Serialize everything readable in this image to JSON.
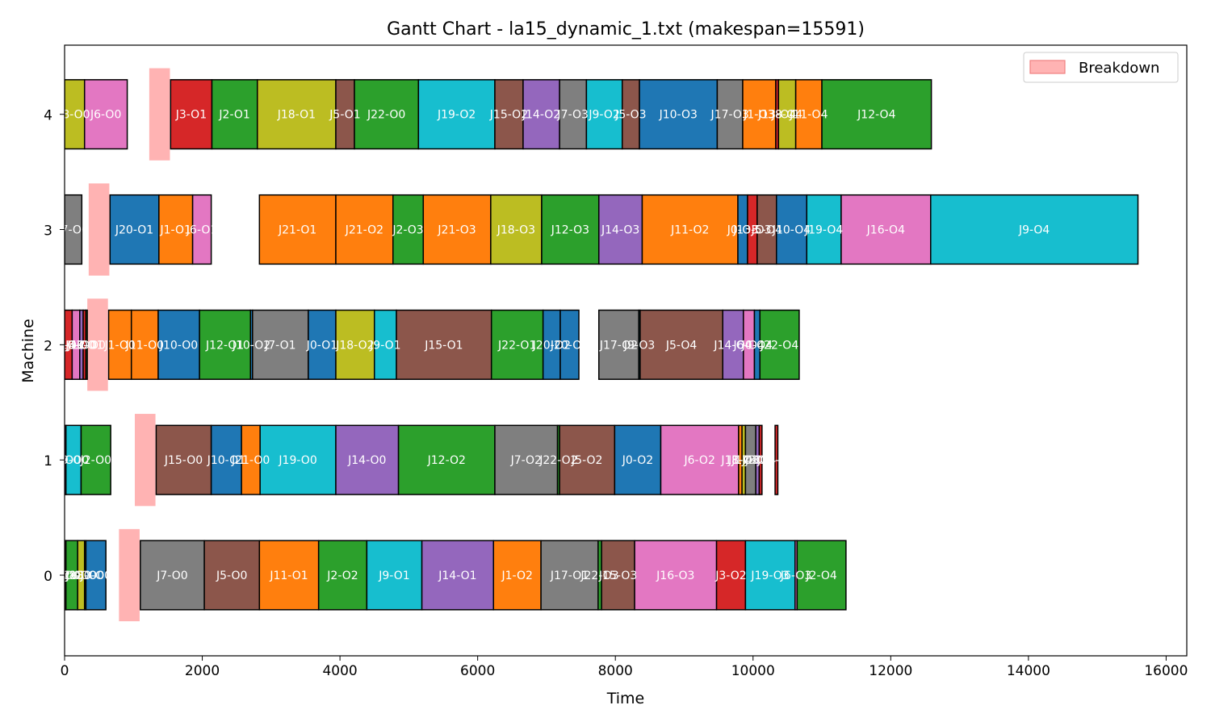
{
  "chart_data": {
    "type": "gantt",
    "title": "Gantt Chart - la15_dynamic_1.txt (makespan=15591)",
    "xlabel": "Time",
    "ylabel": "Machine",
    "xlim": [
      0,
      16300
    ],
    "ylim": [
      -0.7,
      4.6
    ],
    "x_ticks": [
      0,
      2000,
      4000,
      6000,
      8000,
      10000,
      12000,
      14000,
      16000
    ],
    "x_tick_labels": [
      "0",
      "2000",
      "4000",
      "6000",
      "8000",
      "10000",
      "12000",
      "14000",
      "16000"
    ],
    "y_ticks": [
      0,
      1,
      2,
      3,
      4
    ],
    "y_tick_labels": [
      "0",
      "1",
      "2",
      "3",
      "4"
    ],
    "legend": {
      "label": "Breakdown",
      "color": "#ffb3b3",
      "edge": "#f08080",
      "position": "top-right"
    },
    "colors": {
      "J0": "#1f77b4",
      "J1": "#ff7f0e",
      "J2": "#2ca02c",
      "J3": "#d62728",
      "J4": "#9467bd",
      "J5": "#8c564b",
      "J6": "#e377c2",
      "J7": "#7f7f7f",
      "J8": "#bcbd22",
      "J9": "#17becf",
      "J10": "#1f77b4",
      "J11": "#ff7f0e",
      "J12": "#2ca02c",
      "J13": "#d62728",
      "J14": "#9467bd",
      "J15": "#8c564b",
      "J16": "#e377c2",
      "J17": "#7f7f7f",
      "J18": "#bcbd22",
      "J19": "#17becf",
      "J20": "#1f77b4",
      "J21": "#ff7f0e",
      "J22": "#2ca02c"
    },
    "breakdowns": [
      {
        "machine": 4,
        "start": 1230,
        "end": 1530
      },
      {
        "machine": 3,
        "start": 350,
        "end": 650
      },
      {
        "machine": 2,
        "start": 330,
        "end": 630
      },
      {
        "machine": 1,
        "start": 1020,
        "end": 1320
      },
      {
        "machine": 0,
        "start": 790,
        "end": 1090
      }
    ],
    "machines": [
      {
        "machine": 4,
        "ops": [
          {
            "label": "J8-O0",
            "job": "J8",
            "start": 0,
            "end": 290
          },
          {
            "label": "J6-O0",
            "job": "J6",
            "start": 290,
            "end": 910
          },
          {
            "label": "J3-O1",
            "job": "J3",
            "start": 1540,
            "end": 2140
          },
          {
            "label": "J2-O1",
            "job": "J2",
            "start": 2140,
            "end": 2800
          },
          {
            "label": "J18-O1",
            "job": "J18",
            "start": 2800,
            "end": 3940
          },
          {
            "label": "J5-O1",
            "job": "J5",
            "start": 3940,
            "end": 4210
          },
          {
            "label": "J22-O0",
            "job": "J22",
            "start": 4210,
            "end": 5140
          },
          {
            "label": "J19-O2",
            "job": "J19",
            "start": 5140,
            "end": 6250
          },
          {
            "label": "J15-O2",
            "job": "J15",
            "start": 6250,
            "end": 6660
          },
          {
            "label": "J14-O2",
            "job": "J14",
            "start": 6660,
            "end": 7190
          },
          {
            "label": "J7-O3",
            "job": "J7",
            "start": 7190,
            "end": 7580
          },
          {
            "label": "J9-O2",
            "job": "J9",
            "start": 7580,
            "end": 8100
          },
          {
            "label": "J5-O3",
            "job": "J5",
            "start": 8100,
            "end": 8350
          },
          {
            "label": "J10-O3",
            "job": "J10",
            "start": 8350,
            "end": 9480
          },
          {
            "label": "J17-O3",
            "job": "J17",
            "start": 9480,
            "end": 9850
          },
          {
            "label": "J1-O3",
            "job": "J1",
            "start": 9850,
            "end": 10330
          },
          {
            "label": "J13-O4",
            "job": "J13",
            "start": 10330,
            "end": 10370
          },
          {
            "label": "J8-O4",
            "job": "J8",
            "start": 10370,
            "end": 10620
          },
          {
            "label": "J11-O4",
            "job": "J11",
            "start": 10620,
            "end": 11000
          },
          {
            "label": "J12-O4",
            "job": "J12",
            "start": 11000,
            "end": 12590
          }
        ]
      },
      {
        "machine": 3,
        "ops": [
          {
            "label": "J7-O0",
            "job": "J7",
            "start": 0,
            "end": 250
          },
          {
            "label": "J20-O1",
            "job": "J20",
            "start": 660,
            "end": 1370
          },
          {
            "label": "J1-O1",
            "job": "J1",
            "start": 1370,
            "end": 1860
          },
          {
            "label": "J6-O1",
            "job": "J6",
            "start": 1860,
            "end": 2130
          },
          {
            "label": "J21-O1",
            "job": "J21",
            "start": 2830,
            "end": 3940
          },
          {
            "label": "J21-O2",
            "job": "J21",
            "start": 3940,
            "end": 4770
          },
          {
            "label": "J2-O3",
            "job": "J2",
            "start": 4770,
            "end": 5210
          },
          {
            "label": "J21-O3",
            "job": "J21",
            "start": 5210,
            "end": 6190
          },
          {
            "label": "J18-O3",
            "job": "J18",
            "start": 6190,
            "end": 6930
          },
          {
            "label": "J12-O3",
            "job": "J12",
            "start": 6930,
            "end": 7760
          },
          {
            "label": "J14-O3",
            "job": "J14",
            "start": 7760,
            "end": 8390
          },
          {
            "label": "J11-O2",
            "job": "J11",
            "start": 8390,
            "end": 9780
          },
          {
            "label": "J0-O3",
            "job": "J0",
            "start": 9780,
            "end": 9920
          },
          {
            "label": "J13-O3",
            "job": "J13",
            "start": 9920,
            "end": 10060
          },
          {
            "label": "J5-O4",
            "job": "J5",
            "start": 10060,
            "end": 10340
          },
          {
            "label": "J10-O4",
            "job": "J10",
            "start": 10340,
            "end": 10780
          },
          {
            "label": "J19-O4",
            "job": "J19",
            "start": 10780,
            "end": 11280
          },
          {
            "label": "J16-O4",
            "job": "J16",
            "start": 11280,
            "end": 12580
          },
          {
            "label": "J9-O4",
            "job": "J9",
            "start": 12580,
            "end": 15591
          }
        ]
      },
      {
        "machine": 2,
        "ops": [
          {
            "label": "J3-O0",
            "job": "J3",
            "start": 0,
            "end": 110
          },
          {
            "label": "J16-O0",
            "job": "J16",
            "start": 110,
            "end": 220
          },
          {
            "label": "J4-O0",
            "job": "J4",
            "start": 220,
            "end": 270
          },
          {
            "label": "J13-O1",
            "job": "J13",
            "start": 270,
            "end": 310
          },
          {
            "label": "J12-O0",
            "job": "J12",
            "start": 310,
            "end": 330
          },
          {
            "label": "J1-O0",
            "job": "J1",
            "start": 640,
            "end": 970
          },
          {
            "label": "J11-O0",
            "job": "J11",
            "start": 970,
            "end": 1360
          },
          {
            "label": "J10-O0",
            "job": "J10",
            "start": 1360,
            "end": 1960
          },
          {
            "label": "J12-O1",
            "job": "J12",
            "start": 1960,
            "end": 2700
          },
          {
            "label": "J10-O2",
            "job": "J10",
            "start": 2700,
            "end": 2730
          },
          {
            "label": "J7-O1",
            "job": "J7",
            "start": 2730,
            "end": 3540
          },
          {
            "label": "J0-O1",
            "job": "J0",
            "start": 3540,
            "end": 3940
          },
          {
            "label": "J18-O2",
            "job": "J18",
            "start": 3940,
            "end": 4500
          },
          {
            "label": "J9-O1",
            "job": "J9",
            "start": 4500,
            "end": 4820
          },
          {
            "label": "J15-O1",
            "job": "J15",
            "start": 4820,
            "end": 6200
          },
          {
            "label": "J22-O1",
            "job": "J22",
            "start": 6200,
            "end": 6950
          },
          {
            "label": "J20-O2",
            "job": "J20",
            "start": 6950,
            "end": 7200
          },
          {
            "label": "J20-O3",
            "job": "J20",
            "start": 7200,
            "end": 7470
          },
          {
            "label": "J17-O2",
            "job": "J17",
            "start": 7760,
            "end": 8340
          },
          {
            "label": "J9-O3",
            "job": "J9",
            "start": 8340,
            "end": 8360
          },
          {
            "label": "J5-O4",
            "job": "J5",
            "start": 8360,
            "end": 9560
          },
          {
            "label": "J14-O4",
            "job": "J14",
            "start": 9560,
            "end": 9860
          },
          {
            "label": "J6-O4",
            "job": "J6",
            "start": 9860,
            "end": 10020
          },
          {
            "label": "J0-O4",
            "job": "J0",
            "start": 10020,
            "end": 10100
          },
          {
            "label": "J22-O4",
            "job": "J22",
            "start": 10100,
            "end": 10670
          }
        ]
      },
      {
        "machine": 1,
        "ops": [
          {
            "label": "J4-O0",
            "job": "J4",
            "start": 0,
            "end": 20
          },
          {
            "label": "J9-O0",
            "job": "J9",
            "start": 20,
            "end": 240
          },
          {
            "label": "J2-O0",
            "job": "J2",
            "start": 240,
            "end": 670
          },
          {
            "label": "J15-O0",
            "job": "J15",
            "start": 1330,
            "end": 2130
          },
          {
            "label": "J10-O1",
            "job": "J10",
            "start": 2130,
            "end": 2570
          },
          {
            "label": "J21-O0",
            "job": "J21",
            "start": 2570,
            "end": 2840
          },
          {
            "label": "J19-O0",
            "job": "J19",
            "start": 2840,
            "end": 3940
          },
          {
            "label": "J14-O0",
            "job": "J14",
            "start": 3940,
            "end": 4850
          },
          {
            "label": "J12-O2",
            "job": "J12",
            "start": 4850,
            "end": 6250
          },
          {
            "label": "J7-O2",
            "job": "J7",
            "start": 6250,
            "end": 7160
          },
          {
            "label": "J22-O2",
            "job": "J22",
            "start": 7160,
            "end": 7190
          },
          {
            "label": "J5-O2",
            "job": "J5",
            "start": 7190,
            "end": 7990
          },
          {
            "label": "J0-O2",
            "job": "J0",
            "start": 7990,
            "end": 8660
          },
          {
            "label": "J6-O2",
            "job": "J6",
            "start": 8660,
            "end": 9790
          },
          {
            "label": "J11-O3",
            "job": "J11",
            "start": 9790,
            "end": 9840
          },
          {
            "label": "J8-O3",
            "job": "J8",
            "start": 9840,
            "end": 9890
          },
          {
            "label": "J17-O4",
            "job": "J17",
            "start": 9890,
            "end": 10040
          },
          {
            "label": "J4-O4",
            "job": "J4",
            "start": 10040,
            "end": 10090
          },
          {
            "label": "J3-O4",
            "job": "J3",
            "start": 10090,
            "end": 10130
          },
          {
            "label": "J13-O4",
            "job": "J13",
            "start": 10320,
            "end": 10360
          }
        ]
      },
      {
        "machine": 0,
        "ops": [
          {
            "label": "J5-O0",
            "job": "J5",
            "start": 0,
            "end": 20
          },
          {
            "label": "J12-O0",
            "job": "J12",
            "start": 20,
            "end": 190
          },
          {
            "label": "J8-O0",
            "job": "J8",
            "start": 190,
            "end": 290
          },
          {
            "label": "J18-O0",
            "job": "J18",
            "start": 290,
            "end": 310
          },
          {
            "label": "J0-O0",
            "job": "J0",
            "start": 310,
            "end": 600
          },
          {
            "label": "J7-O0",
            "job": "J7",
            "start": 1100,
            "end": 2030
          },
          {
            "label": "J5-O0",
            "job": "J5",
            "start": 2030,
            "end": 2830
          },
          {
            "label": "J11-O1",
            "job": "J11",
            "start": 2830,
            "end": 3690
          },
          {
            "label": "J2-O2",
            "job": "J2",
            "start": 3690,
            "end": 4390
          },
          {
            "label": "J9-O1",
            "job": "J9",
            "start": 4390,
            "end": 5190
          },
          {
            "label": "J14-O1",
            "job": "J14",
            "start": 5190,
            "end": 6230
          },
          {
            "label": "J1-O2",
            "job": "J1",
            "start": 6230,
            "end": 6920
          },
          {
            "label": "J17-O1",
            "job": "J17",
            "start": 6920,
            "end": 7750
          },
          {
            "label": "J22-O3",
            "job": "J22",
            "start": 7750,
            "end": 7800
          },
          {
            "label": "J15-O3",
            "job": "J15",
            "start": 7800,
            "end": 8280
          },
          {
            "label": "J16-O3",
            "job": "J16",
            "start": 8280,
            "end": 9470
          },
          {
            "label": "J3-O2",
            "job": "J3",
            "start": 9470,
            "end": 9890
          },
          {
            "label": "J19-O3",
            "job": "J19",
            "start": 9890,
            "end": 10610
          },
          {
            "label": "J6-O3",
            "job": "J6",
            "start": 10610,
            "end": 10640
          },
          {
            "label": "J2-O4",
            "job": "J2",
            "start": 10640,
            "end": 11350
          }
        ]
      }
    ]
  }
}
